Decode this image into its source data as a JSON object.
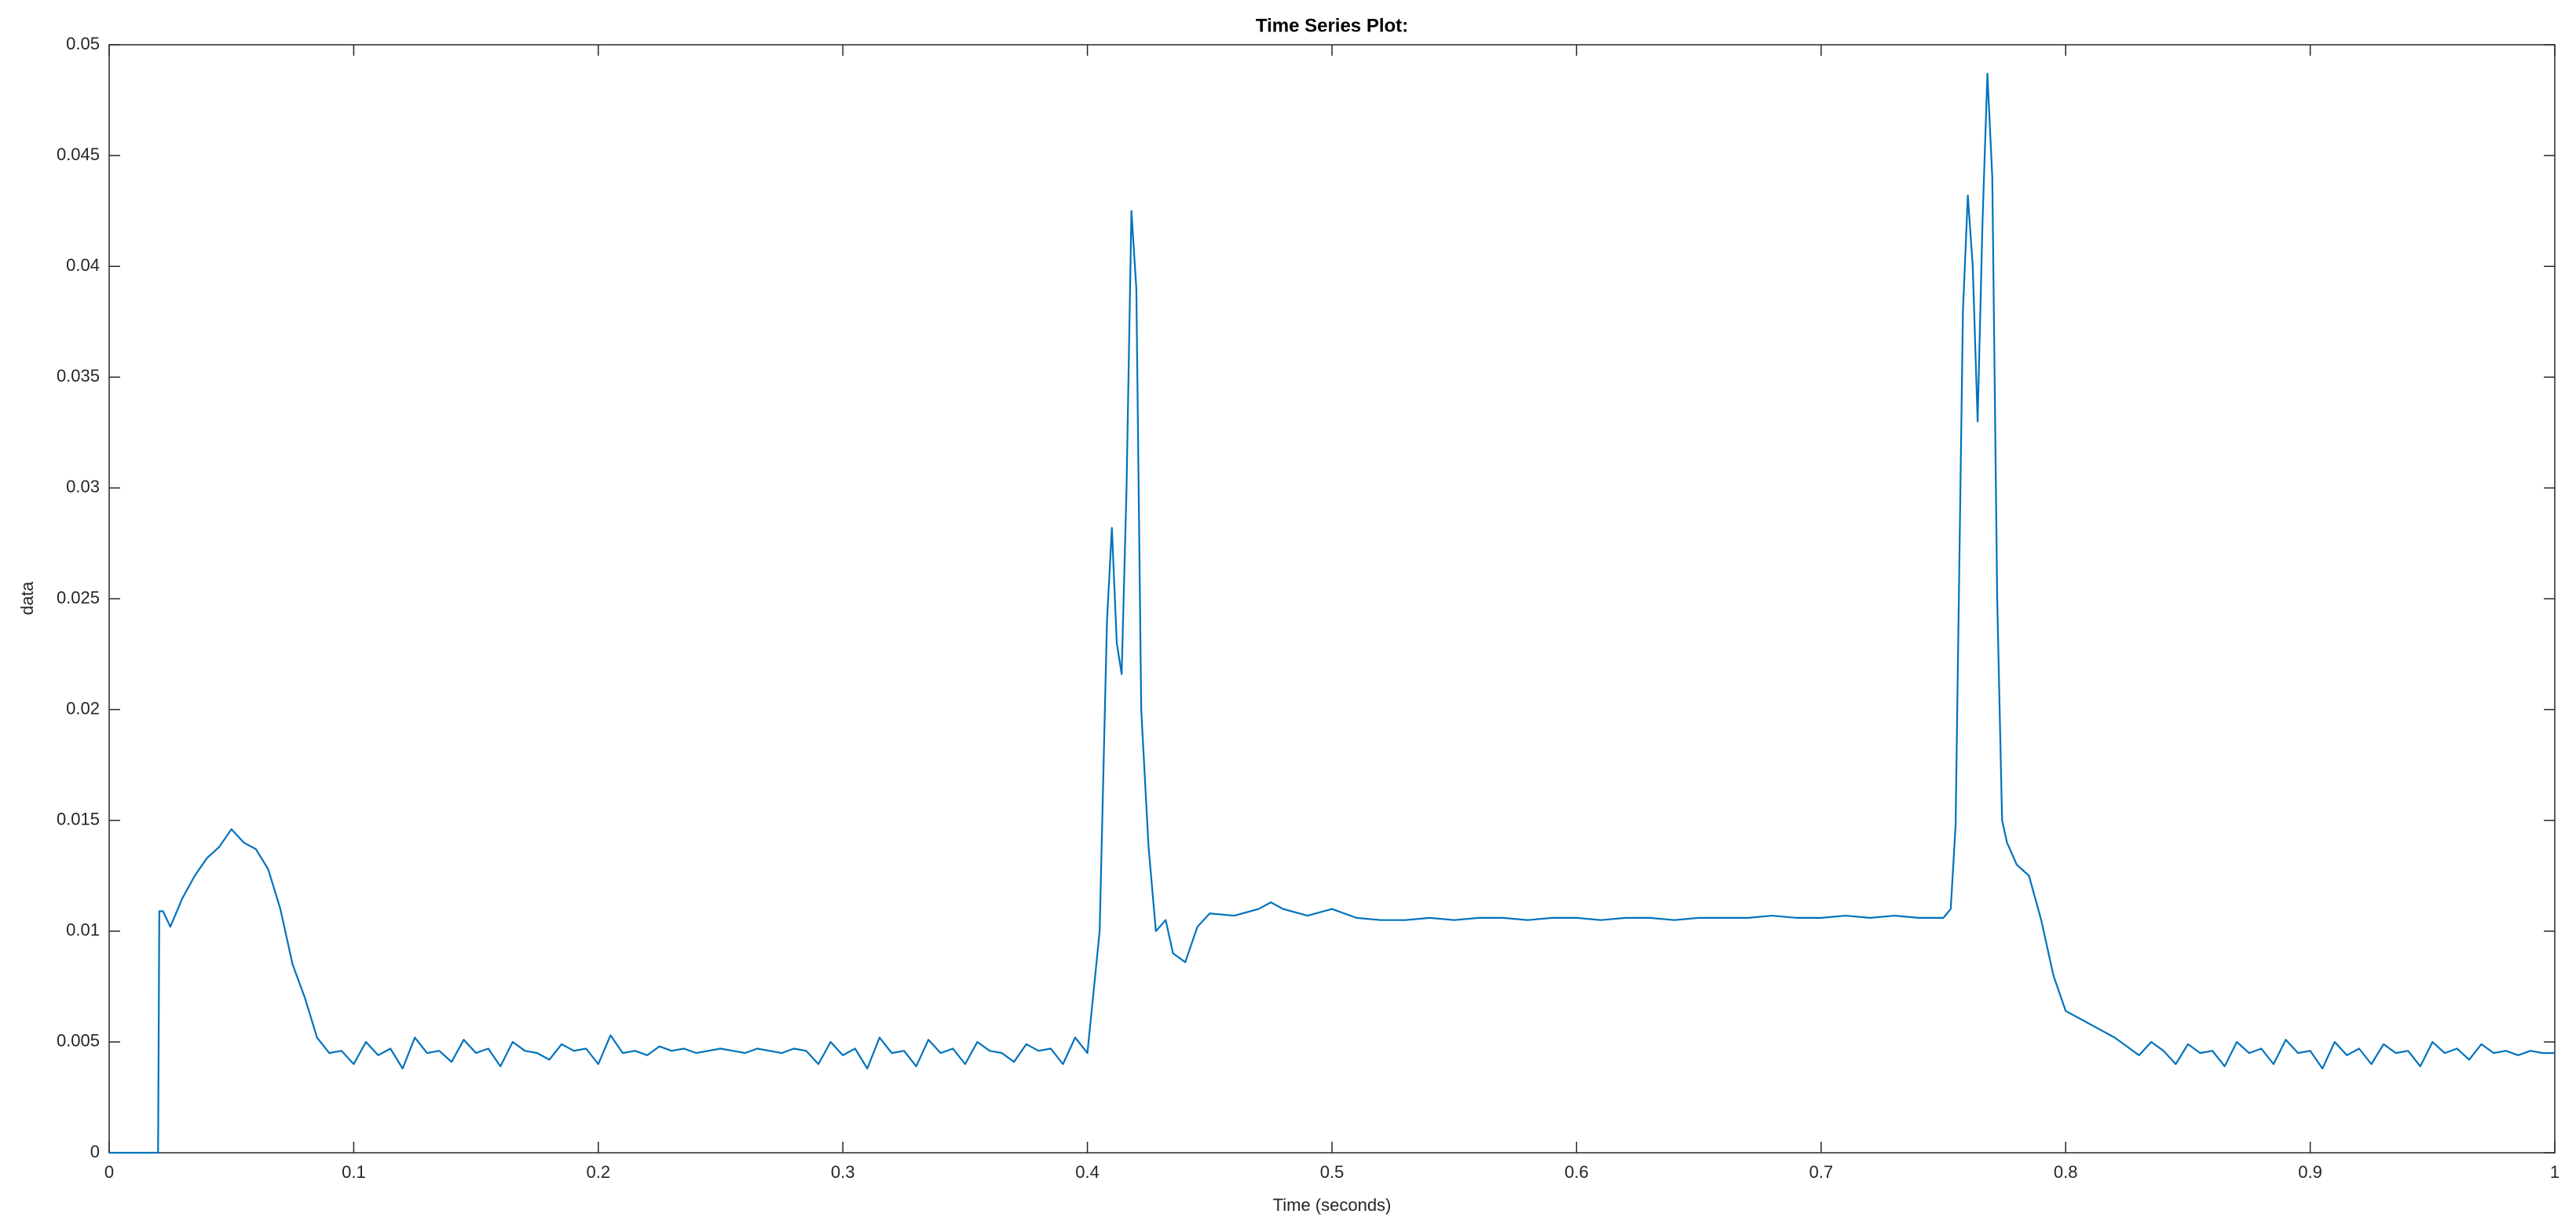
{
  "chart_data": {
    "type": "line",
    "title": "Time Series Plot:",
    "xlabel": "Time (seconds)",
    "ylabel": "data",
    "color": "#0072bd",
    "xlim": [
      0,
      1
    ],
    "ylim": [
      0,
      0.05
    ],
    "xticks": [
      0,
      0.1,
      0.2,
      0.3,
      0.4,
      0.5,
      0.6,
      0.7,
      0.8,
      0.9,
      1
    ],
    "yticks": [
      0,
      0.005,
      0.01,
      0.015,
      0.02,
      0.025,
      0.03,
      0.035,
      0.04,
      0.045,
      0.05
    ],
    "grid": false,
    "x": [
      0,
      0.02,
      0.0205,
      0.022,
      0.025,
      0.03,
      0.035,
      0.04,
      0.045,
      0.05,
      0.055,
      0.06,
      0.065,
      0.07,
      0.075,
      0.08,
      0.085,
      0.09,
      0.095,
      0.1,
      0.105,
      0.11,
      0.115,
      0.12,
      0.125,
      0.13,
      0.135,
      0.14,
      0.145,
      0.15,
      0.155,
      0.16,
      0.165,
      0.17,
      0.175,
      0.18,
      0.185,
      0.19,
      0.195,
      0.2,
      0.205,
      0.21,
      0.215,
      0.22,
      0.225,
      0.23,
      0.235,
      0.24,
      0.245,
      0.25,
      0.255,
      0.26,
      0.265,
      0.27,
      0.275,
      0.28,
      0.285,
      0.29,
      0.295,
      0.3,
      0.305,
      0.31,
      0.315,
      0.32,
      0.325,
      0.33,
      0.335,
      0.34,
      0.345,
      0.35,
      0.355,
      0.36,
      0.365,
      0.37,
      0.375,
      0.38,
      0.385,
      0.39,
      0.395,
      0.4,
      0.405,
      0.408,
      0.41,
      0.412,
      0.414,
      0.416,
      0.418,
      0.42,
      0.422,
      0.425,
      0.428,
      0.432,
      0.435,
      0.44,
      0.445,
      0.45,
      0.46,
      0.47,
      0.475,
      0.48,
      0.49,
      0.5,
      0.51,
      0.52,
      0.53,
      0.54,
      0.55,
      0.56,
      0.57,
      0.58,
      0.59,
      0.6,
      0.61,
      0.62,
      0.63,
      0.64,
      0.65,
      0.66,
      0.67,
      0.68,
      0.69,
      0.7,
      0.71,
      0.72,
      0.73,
      0.74,
      0.75,
      0.753,
      0.755,
      0.758,
      0.76,
      0.762,
      0.764,
      0.766,
      0.768,
      0.77,
      0.772,
      0.774,
      0.776,
      0.78,
      0.785,
      0.79,
      0.795,
      0.8,
      0.81,
      0.82,
      0.825,
      0.83,
      0.835,
      0.84,
      0.845,
      0.85,
      0.855,
      0.86,
      0.865,
      0.87,
      0.875,
      0.88,
      0.885,
      0.89,
      0.895,
      0.9,
      0.905,
      0.91,
      0.915,
      0.92,
      0.925,
      0.93,
      0.935,
      0.94,
      0.945,
      0.95,
      0.955,
      0.96,
      0.965,
      0.97,
      0.975,
      0.98,
      0.985,
      0.99,
      0.995,
      1
    ],
    "values": [
      0,
      0,
      0.0109,
      0.0109,
      0.0102,
      0.0115,
      0.0125,
      0.0133,
      0.0138,
      0.0146,
      0.014,
      0.0137,
      0.0128,
      0.011,
      0.0085,
      0.007,
      0.0052,
      0.0045,
      0.0046,
      0.004,
      0.005,
      0.0044,
      0.0047,
      0.0038,
      0.0052,
      0.0045,
      0.0046,
      0.0041,
      0.0051,
      0.0045,
      0.0047,
      0.0039,
      0.005,
      0.0046,
      0.0045,
      0.0042,
      0.0049,
      0.0046,
      0.0047,
      0.004,
      0.0053,
      0.0045,
      0.0046,
      0.0044,
      0.0048,
      0.0046,
      0.0047,
      0.0045,
      0.0046,
      0.0047,
      0.0046,
      0.0045,
      0.0047,
      0.0046,
      0.0045,
      0.0047,
      0.0046,
      0.004,
      0.005,
      0.0044,
      0.0047,
      0.0038,
      0.0052,
      0.0045,
      0.0046,
      0.0039,
      0.0051,
      0.0045,
      0.0047,
      0.004,
      0.005,
      0.0046,
      0.0045,
      0.0041,
      0.0049,
      0.0046,
      0.0047,
      0.004,
      0.0052,
      0.0045,
      0.01,
      0.024,
      0.0282,
      0.023,
      0.0216,
      0.03,
      0.0425,
      0.039,
      0.02,
      0.0138,
      0.01,
      0.0105,
      0.009,
      0.0086,
      0.0102,
      0.0108,
      0.0107,
      0.011,
      0.0113,
      0.011,
      0.0107,
      0.011,
      0.0106,
      0.0105,
      0.0105,
      0.0106,
      0.0105,
      0.0106,
      0.0106,
      0.0105,
      0.0106,
      0.0106,
      0.0105,
      0.0106,
      0.0106,
      0.0105,
      0.0106,
      0.0106,
      0.0106,
      0.0107,
      0.0106,
      0.0106,
      0.0107,
      0.0106,
      0.0107,
      0.0106,
      0.0106,
      0.011,
      0.0148,
      0.038,
      0.0432,
      0.04,
      0.033,
      0.042,
      0.0487,
      0.044,
      0.025,
      0.015,
      0.014,
      0.013,
      0.0125,
      0.0105,
      0.008,
      0.0064,
      0.0058,
      0.0052,
      0.0048,
      0.0044,
      0.005,
      0.0046,
      0.004,
      0.0049,
      0.0045,
      0.0046,
      0.0039,
      0.005,
      0.0045,
      0.0047,
      0.004,
      0.0051,
      0.0045,
      0.0046,
      0.0038,
      0.005,
      0.0044,
      0.0047,
      0.004,
      0.0049,
      0.0045,
      0.0046,
      0.0039,
      0.005,
      0.0045,
      0.0047,
      0.0042,
      0.0049,
      0.0045,
      0.0046,
      0.0044,
      0.0046,
      0.0045,
      0.0045
    ]
  }
}
